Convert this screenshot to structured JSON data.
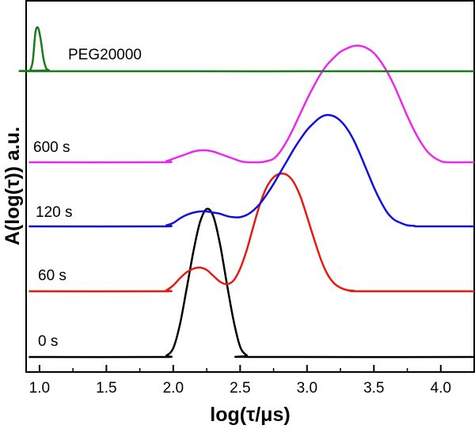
{
  "chart_data": {
    "type": "line",
    "title": "",
    "xlabel": "log(τ/μs)",
    "ylabel": "A(log(τ)) a.u.",
    "xlim": [
      0.9,
      4.25
    ],
    "xticks": [
      "1.0",
      "1.5",
      "2.0",
      "2.5",
      "3.0",
      "3.5",
      "4.0"
    ],
    "y_ticks_shown": false,
    "grid": false,
    "legend": "none",
    "series": [
      {
        "name": "0 s",
        "color": "#000000",
        "offset": 0,
        "x": [
          0.92,
          1.9,
          1.95,
          2.0,
          2.05,
          2.1,
          2.15,
          2.2,
          2.25,
          2.3,
          2.35,
          2.4,
          2.45,
          2.5,
          2.55,
          2.6,
          4.25
        ],
        "y": [
          0,
          0,
          0.01,
          0.06,
          0.22,
          0.46,
          0.71,
          0.91,
          1.0,
          0.95,
          0.76,
          0.5,
          0.25,
          0.07,
          0.01,
          0,
          0
        ]
      },
      {
        "name": "60 s",
        "color": "#e8190f",
        "offset": 1,
        "x": [
          0.92,
          1.9,
          1.95,
          2.0,
          2.05,
          2.1,
          2.15,
          2.2,
          2.25,
          2.3,
          2.35,
          2.4,
          2.45,
          2.5,
          2.55,
          2.6,
          2.65,
          2.7,
          2.75,
          2.8,
          2.85,
          2.9,
          2.95,
          3.0,
          3.05,
          3.1,
          3.15,
          3.2,
          3.25,
          3.3,
          3.35,
          3.4,
          4.25
        ],
        "y": [
          0,
          0,
          0.01,
          0.05,
          0.11,
          0.16,
          0.19,
          0.2,
          0.18,
          0.13,
          0.08,
          0.06,
          0.09,
          0.19,
          0.35,
          0.55,
          0.74,
          0.88,
          0.96,
          0.99,
          0.98,
          0.92,
          0.8,
          0.63,
          0.45,
          0.28,
          0.15,
          0.07,
          0.03,
          0.01,
          0.005,
          0,
          0
        ]
      },
      {
        "name": "120 s",
        "color": "#1010e0",
        "offset": 2,
        "x": [
          0.92,
          1.9,
          1.95,
          2.0,
          2.05,
          2.1,
          2.15,
          2.2,
          2.25,
          2.3,
          2.35,
          2.4,
          2.45,
          2.5,
          2.55,
          2.6,
          2.65,
          2.7,
          2.75,
          2.8,
          2.85,
          2.9,
          2.95,
          3.0,
          3.05,
          3.1,
          3.15,
          3.2,
          3.25,
          3.3,
          3.35,
          3.4,
          3.45,
          3.5,
          3.55,
          3.6,
          3.65,
          3.7,
          3.75,
          3.8,
          3.85,
          4.25
        ],
        "y": [
          0,
          0,
          0.01,
          0.03,
          0.07,
          0.1,
          0.12,
          0.13,
          0.13,
          0.12,
          0.11,
          0.09,
          0.08,
          0.08,
          0.1,
          0.14,
          0.2,
          0.28,
          0.37,
          0.47,
          0.57,
          0.67,
          0.76,
          0.84,
          0.9,
          0.95,
          0.97,
          0.96,
          0.92,
          0.85,
          0.75,
          0.62,
          0.48,
          0.34,
          0.22,
          0.12,
          0.06,
          0.03,
          0.01,
          0.005,
          0,
          0
        ]
      },
      {
        "name": "600 s",
        "color": "#ec28ec",
        "offset": 3,
        "x": [
          0.92,
          1.9,
          1.95,
          2.0,
          2.05,
          2.1,
          2.15,
          2.2,
          2.25,
          2.3,
          2.35,
          2.4,
          2.45,
          2.5,
          2.55,
          2.6,
          2.65,
          2.7,
          2.75,
          2.8,
          2.85,
          2.9,
          2.95,
          3.0,
          3.05,
          3.1,
          3.15,
          3.2,
          3.25,
          3.3,
          3.35,
          3.4,
          3.45,
          3.5,
          3.55,
          3.6,
          3.65,
          3.7,
          3.75,
          3.8,
          3.85,
          3.9,
          3.95,
          4.0,
          4.05,
          4.25
        ],
        "y": [
          0,
          0,
          0.01,
          0.03,
          0.05,
          0.07,
          0.09,
          0.1,
          0.1,
          0.09,
          0.07,
          0.05,
          0.03,
          0.01,
          0,
          0,
          0,
          0.01,
          0.03,
          0.09,
          0.18,
          0.29,
          0.41,
          0.53,
          0.64,
          0.74,
          0.82,
          0.88,
          0.93,
          0.96,
          0.98,
          0.98,
          0.96,
          0.92,
          0.85,
          0.76,
          0.65,
          0.52,
          0.39,
          0.27,
          0.17,
          0.09,
          0.04,
          0.01,
          0,
          0
        ]
      },
      {
        "name": "PEG20000",
        "color": "#1a7a1a",
        "offset": 4,
        "x": [
          0.92,
          0.93,
          0.95,
          0.97,
          0.99,
          1.01,
          1.03,
          1.05,
          1.07,
          1.09,
          4.25
        ],
        "y": [
          0,
          0.01,
          0.1,
          0.38,
          0.42,
          0.3,
          0.12,
          0.03,
          0.01,
          0,
          0
        ]
      }
    ]
  }
}
